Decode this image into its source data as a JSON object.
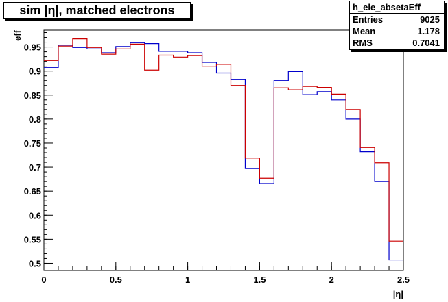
{
  "title": "sim |η|, matched electrons",
  "stats": {
    "name": "h_ele_absetaEff",
    "rows": [
      {
        "label": "Entries",
        "value": "9025"
      },
      {
        "label": "Mean",
        "value": "1.178"
      },
      {
        "label": "RMS",
        "value": "0.7041"
      }
    ]
  },
  "chart_data": {
    "type": "line",
    "xlabel": "|η|",
    "ylabel": "eff",
    "xlim": [
      0,
      2.5
    ],
    "ylim": [
      0.485,
      0.985
    ],
    "xticks": [
      0,
      0.5,
      1,
      1.5,
      2,
      2.5
    ],
    "xtick_labels": [
      "0",
      "0.5",
      "1",
      "1.5",
      "2",
      "2.5"
    ],
    "yticks": [
      0.5,
      0.55,
      0.6,
      0.65,
      0.7,
      0.75,
      0.8,
      0.85,
      0.9,
      0.95
    ],
    "ytick_labels": [
      "0.5",
      "0.55",
      "0.6",
      "0.65",
      "0.7",
      "0.75",
      "0.8",
      "0.85",
      "0.9",
      "0.95"
    ],
    "bin_edges": [
      0,
      0.1,
      0.2,
      0.3,
      0.4,
      0.5,
      0.6,
      0.7,
      0.8,
      0.9,
      1.0,
      1.1,
      1.2,
      1.3,
      1.4,
      1.5,
      1.6,
      1.7,
      1.8,
      1.9,
      2.0,
      2.1,
      2.2,
      2.3,
      2.4,
      2.5
    ],
    "series": [
      {
        "color": "#0000cc",
        "values": [
          0.907,
          0.954,
          0.949,
          0.946,
          0.938,
          0.951,
          0.959,
          0.957,
          0.941,
          0.941,
          0.938,
          0.918,
          0.896,
          0.882,
          0.697,
          0.666,
          0.88,
          0.899,
          0.851,
          0.857,
          0.84,
          0.8,
          0.732,
          0.67,
          0.507
        ]
      },
      {
        "color": "#cc0000",
        "values": [
          0.922,
          0.952,
          0.967,
          0.949,
          0.935,
          0.946,
          0.956,
          0.902,
          0.933,
          0.929,
          0.932,
          0.91,
          0.914,
          0.87,
          0.719,
          0.677,
          0.865,
          0.861,
          0.868,
          0.866,
          0.852,
          0.82,
          0.741,
          0.709,
          0.546
        ]
      }
    ],
    "grid": false,
    "legend": "none"
  }
}
